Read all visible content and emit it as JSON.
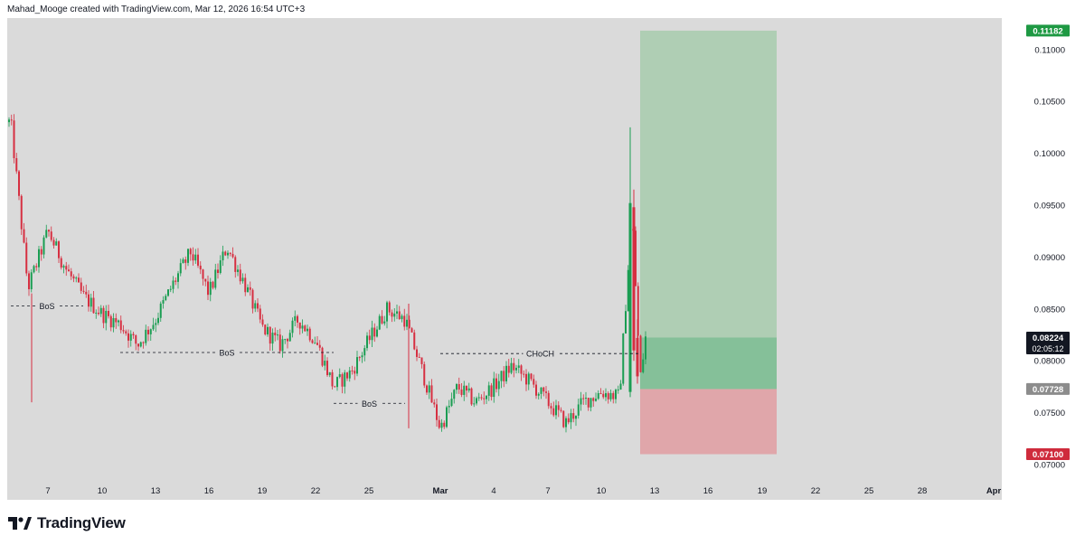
{
  "header": {
    "attribution": "Mahad_Mooge created with TradingView.com, Mar 12, 2026 16:54 UTC+3"
  },
  "branding": {
    "logo_text": "TradingView",
    "logo_icon": "tradingview-logo-icon"
  },
  "colors": {
    "background": "#dadada",
    "up": "#1a9d52",
    "down": "#d62f41",
    "profit_zone": "#8dc495",
    "loss_zone": "#e29095",
    "target_label": "#1e9943",
    "stop_label": "#cf2b3c",
    "entry_label": "#8c8c8c",
    "current_label": "#131722"
  },
  "chart_data": {
    "type": "candlestick",
    "title": "",
    "price_axis": {
      "ticks": [
        "0.11000",
        "0.10500",
        "0.10000",
        "0.09500",
        "0.09000",
        "0.08500",
        "0.08000",
        "0.07500",
        "0.07000"
      ],
      "range": [
        0.0692,
        0.1132
      ]
    },
    "time_axis": {
      "ticks": [
        "7",
        "10",
        "13",
        "16",
        "19",
        "22",
        "25",
        "Mar",
        "4",
        "7",
        "10",
        "13",
        "16",
        "19",
        "22",
        "25",
        "28",
        "Apr"
      ]
    },
    "price_labels": {
      "target": "0.11182",
      "current_price": "0.08224",
      "countdown": "02:05:12",
      "entry": "0.07728",
      "stop": "0.07100"
    },
    "position": {
      "type": "long",
      "entry": 0.07728,
      "target": 0.11182,
      "stop": 0.071,
      "current": 0.08224,
      "start": "Mar 12",
      "end": "Mar 20"
    },
    "annotations": [
      {
        "label": "BoS",
        "price": 0.0853,
        "from": "Feb 5",
        "to": "Feb 9"
      },
      {
        "label": "BoS",
        "price": 0.0808,
        "from": "Feb 11",
        "to": "Feb 23"
      },
      {
        "label": "BoS",
        "price": 0.0759,
        "from": "Feb 23",
        "to": "Feb 27"
      },
      {
        "label": "CHoCH",
        "price": 0.0807,
        "from": "Mar 1",
        "to": "Mar 12"
      }
    ],
    "approx_close_path": [
      {
        "date": "Feb 5",
        "close": 0.103
      },
      {
        "date": "Feb 6",
        "close": 0.087
      },
      {
        "date": "Feb 7",
        "close": 0.0925
      },
      {
        "date": "Feb 8",
        "close": 0.089
      },
      {
        "date": "Feb 9",
        "close": 0.0862
      },
      {
        "date": "Feb 10",
        "close": 0.0845
      },
      {
        "date": "Feb 11",
        "close": 0.0835
      },
      {
        "date": "Feb 12",
        "close": 0.0815
      },
      {
        "date": "Feb 13",
        "close": 0.084
      },
      {
        "date": "Feb 14",
        "close": 0.0875
      },
      {
        "date": "Feb 15",
        "close": 0.0905
      },
      {
        "date": "Feb 16",
        "close": 0.0865
      },
      {
        "date": "Feb 17",
        "close": 0.091
      },
      {
        "date": "Feb 18",
        "close": 0.0875
      },
      {
        "date": "Feb 19",
        "close": 0.0832
      },
      {
        "date": "Feb 20",
        "close": 0.0815
      },
      {
        "date": "Feb 21",
        "close": 0.084
      },
      {
        "date": "Feb 22",
        "close": 0.082
      },
      {
        "date": "Feb 23",
        "close": 0.0775
      },
      {
        "date": "Feb 24",
        "close": 0.079
      },
      {
        "date": "Feb 25",
        "close": 0.082
      },
      {
        "date": "Feb 26",
        "close": 0.085
      },
      {
        "date": "Feb 27",
        "close": 0.084
      },
      {
        "date": "Feb 28",
        "close": 0.079
      },
      {
        "date": "Mar 1",
        "close": 0.0735
      },
      {
        "date": "Mar 2",
        "close": 0.0775
      },
      {
        "date": "Mar 3",
        "close": 0.076
      },
      {
        "date": "Mar 4",
        "close": 0.0775
      },
      {
        "date": "Mar 5",
        "close": 0.0795
      },
      {
        "date": "Mar 6",
        "close": 0.078
      },
      {
        "date": "Mar 7",
        "close": 0.076
      },
      {
        "date": "Mar 8",
        "close": 0.074
      },
      {
        "date": "Mar 9",
        "close": 0.076
      },
      {
        "date": "Mar 10",
        "close": 0.077
      },
      {
        "date": "Mar 11",
        "close": 0.0765
      },
      {
        "date": "Mar 11.5",
        "close": 0.0945
      },
      {
        "date": "Mar 12",
        "close": 0.0782
      },
      {
        "date": "Mar 12 (now)",
        "close": 0.08224
      }
    ],
    "grid": false,
    "legend": "none"
  }
}
